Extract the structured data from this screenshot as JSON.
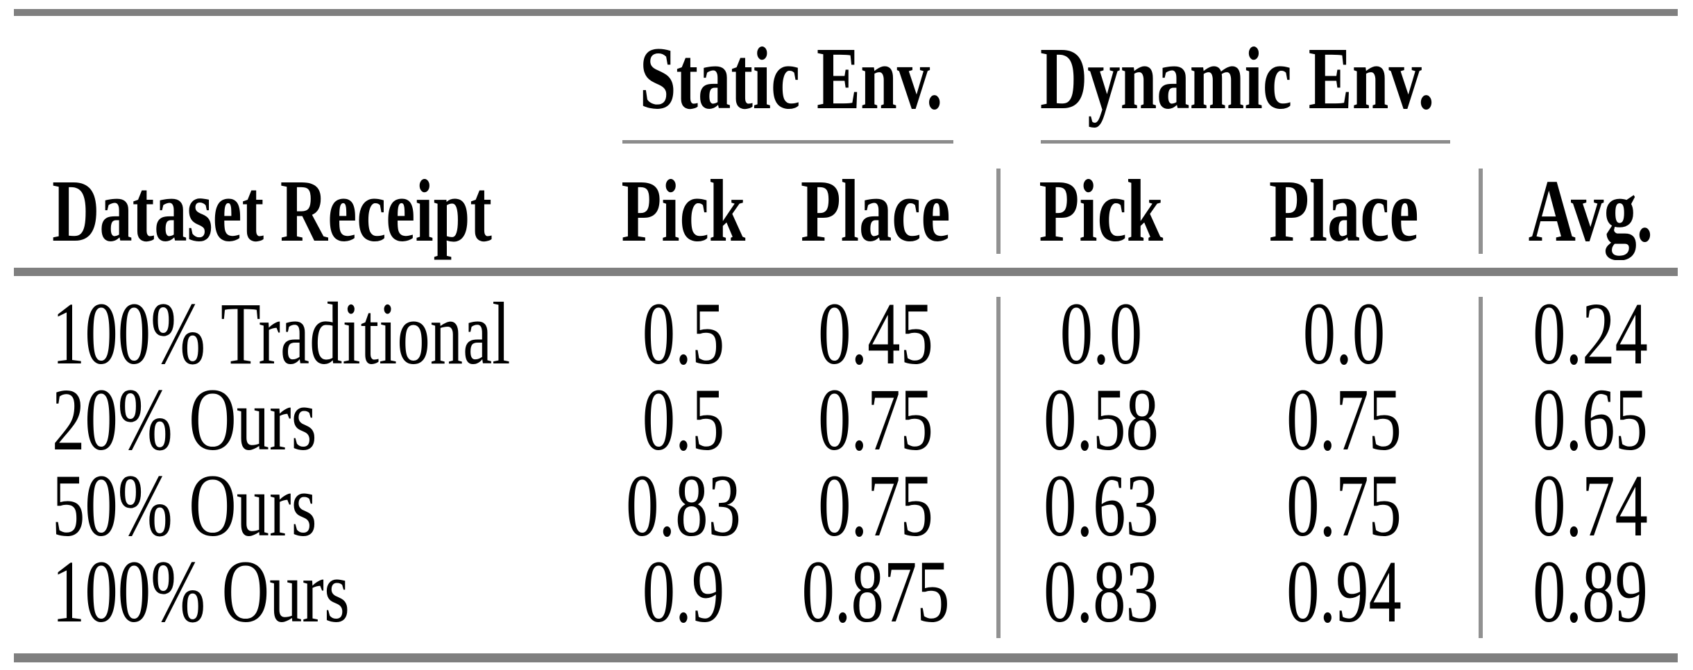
{
  "page": {
    "background": "#ffffff",
    "text_color": "#000000",
    "thick_rule_color": "#7f7f7f",
    "thin_rule_color": "#8c8c8c"
  },
  "chart_data": {
    "type": "table",
    "row_header_label": "Dataset Receipt",
    "column_groups": [
      {
        "label": "Static Env.",
        "columns": [
          "Pick",
          "Place"
        ]
      },
      {
        "label": "Dynamic Env.",
        "columns": [
          "Pick",
          "Place"
        ]
      }
    ],
    "avg_label": "Avg.",
    "rows": [
      {
        "label": "100% Traditional",
        "static_pick": "0.5",
        "static_place": "0.45",
        "dynamic_pick": "0.0",
        "dynamic_place": "0.0",
        "avg": "0.24"
      },
      {
        "label": "20% Ours",
        "static_pick": "0.5",
        "static_place": "0.75",
        "dynamic_pick": "0.58",
        "dynamic_place": "0.75",
        "avg": "0.65"
      },
      {
        "label": "50% Ours",
        "static_pick": "0.83",
        "static_place": "0.75",
        "dynamic_pick": "0.63",
        "dynamic_place": "0.75",
        "avg": "0.74"
      },
      {
        "label": "100% Ours",
        "static_pick": "0.9",
        "static_place": "0.875",
        "dynamic_pick": "0.83",
        "dynamic_place": "0.94",
        "avg": "0.89"
      }
    ]
  }
}
